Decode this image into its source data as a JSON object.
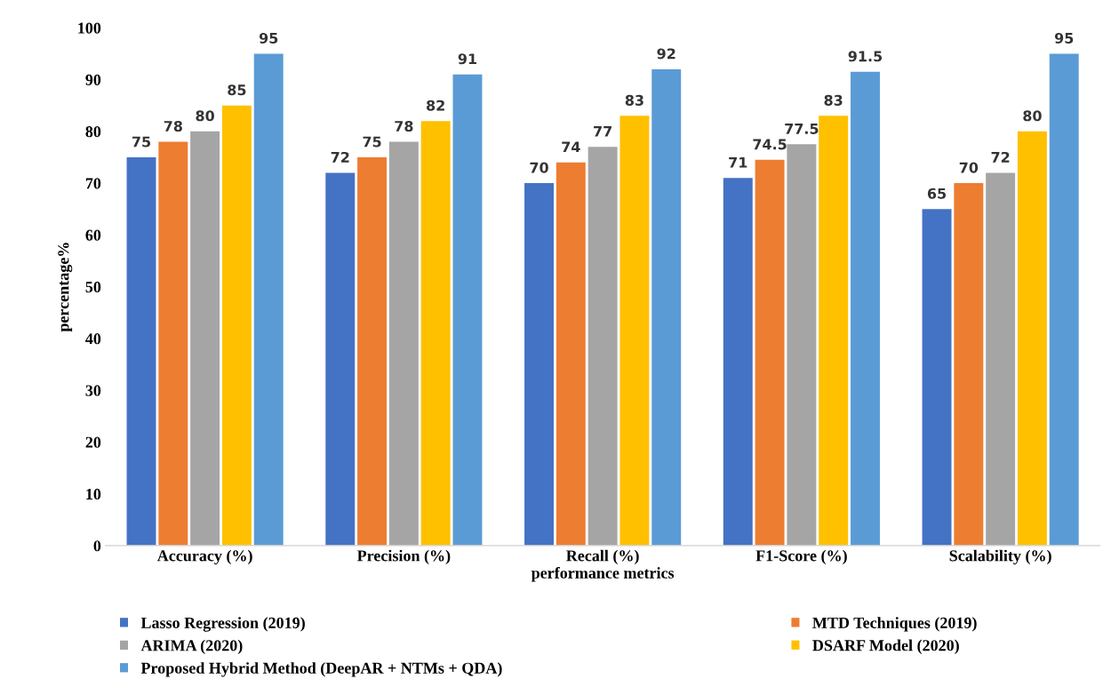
{
  "chart_data": {
    "type": "bar",
    "xlabel": "performance metrics",
    "ylabel": "percentage%",
    "categories": [
      "Accuracy (%)",
      "Precision (%)",
      "Recall (%)",
      "F1-Score (%)",
      "Scalability (%)"
    ],
    "series": [
      {
        "name": "Lasso Regression (2019)",
        "color": "#4472c4",
        "values": [
          75,
          72,
          70,
          71,
          65
        ]
      },
      {
        "name": "MTD Techniques (2019)",
        "color": "#ed7d31",
        "values": [
          78,
          75,
          74,
          74.5,
          70
        ]
      },
      {
        "name": "ARIMA (2020)",
        "color": "#a5a5a5",
        "values": [
          80,
          78,
          77,
          77.5,
          72
        ]
      },
      {
        "name": "DSARF Model (2020)",
        "color": "#ffc000",
        "values": [
          85,
          82,
          83,
          83,
          80
        ]
      },
      {
        "name": "Proposed Hybrid Method (DeepAR + NTMs + QDA)",
        "color": "#5b9bd5",
        "values": [
          95,
          91,
          92,
          91.5,
          95
        ]
      }
    ],
    "ylim": [
      0,
      100
    ],
    "yticks": [
      0,
      10,
      20,
      30,
      40,
      50,
      60,
      70,
      80,
      90,
      100
    ],
    "data_labels": true,
    "legend": "bottom",
    "grid": false
  }
}
